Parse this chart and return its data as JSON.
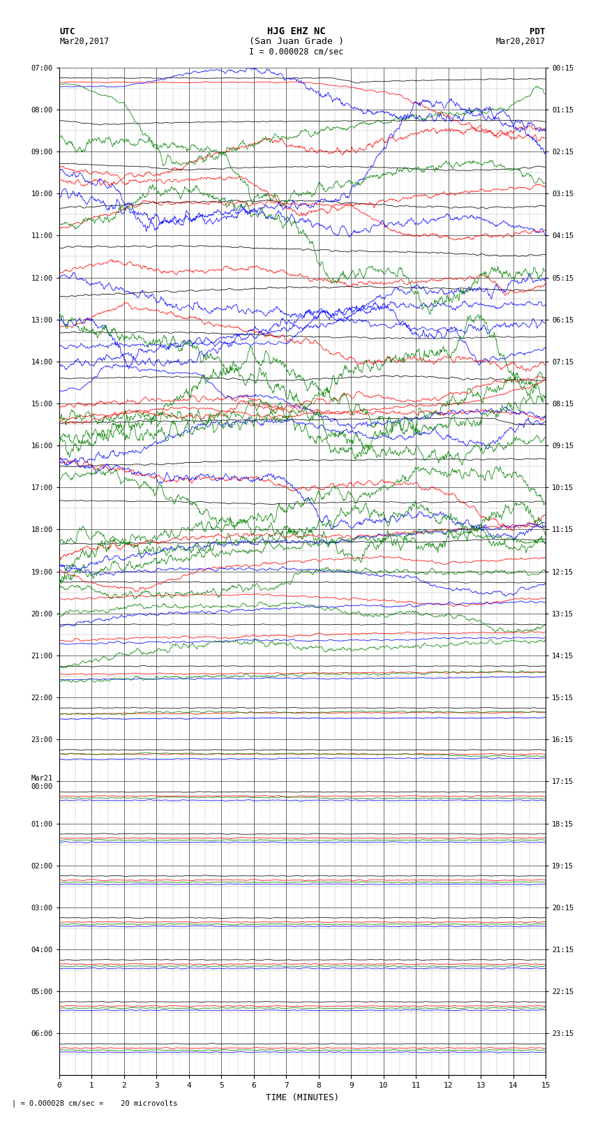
{
  "title_line1": "HJG EHZ NC",
  "title_line2": "(San Juan Grade )",
  "scale_label": "I = 0.000028 cm/sec",
  "left_label_top": "UTC",
  "left_label_date": "Mar20,2017",
  "right_label_top": "PDT",
  "right_label_date": "Mar20,2017",
  "xlabel": "TIME (MINUTES)",
  "bottom_note": "| = 0.000028 cm/sec =    20 microvolts",
  "utc_times": [
    "07:00",
    "08:00",
    "09:00",
    "10:00",
    "11:00",
    "12:00",
    "13:00",
    "14:00",
    "15:00",
    "16:00",
    "17:00",
    "18:00",
    "19:00",
    "20:00",
    "21:00",
    "22:00",
    "23:00",
    "Mar21\n00:00",
    "01:00",
    "02:00",
    "03:00",
    "04:00",
    "05:00",
    "06:00"
  ],
  "pdt_times": [
    "00:15",
    "01:15",
    "02:15",
    "03:15",
    "04:15",
    "05:15",
    "06:15",
    "07:15",
    "08:15",
    "09:15",
    "10:15",
    "11:15",
    "12:15",
    "13:15",
    "14:15",
    "15:15",
    "16:15",
    "17:15",
    "18:15",
    "19:15",
    "20:15",
    "21:15",
    "22:15",
    "23:15"
  ],
  "num_rows": 24,
  "x_min": 0,
  "x_max": 15,
  "background_color": "#ffffff",
  "grid_color_major": "#555555",
  "grid_color_minor": "#aaaaaa",
  "trace_colors": [
    "#000000",
    "#ff0000",
    "#0000ff",
    "#008000"
  ],
  "fig_width": 8.5,
  "fig_height": 16.13
}
